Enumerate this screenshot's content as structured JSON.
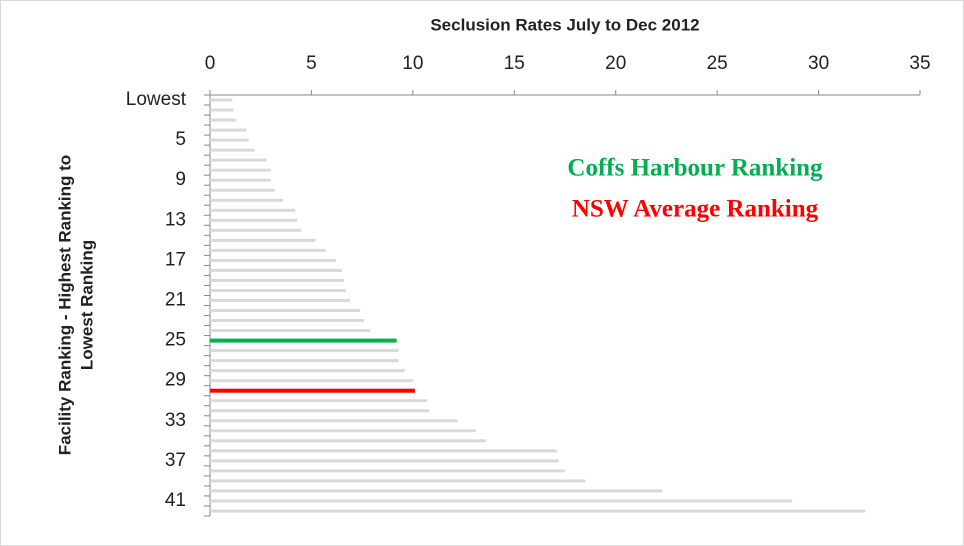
{
  "chart_data": {
    "type": "bar",
    "orientation": "horizontal",
    "title": "Seclusion Rates July to Dec 2012",
    "ylabel": [
      "Facility Ranking - Highest Ranking to",
      "Lowest Ranking"
    ],
    "categories": [
      "Lowest",
      null,
      null,
      null,
      "5",
      null,
      null,
      null,
      "9",
      null,
      null,
      null,
      "13",
      null,
      null,
      null,
      "17",
      null,
      null,
      null,
      "21",
      null,
      null,
      null,
      "25",
      null,
      null,
      null,
      "29",
      null,
      null,
      null,
      "33",
      null,
      null,
      null,
      "37",
      null,
      null,
      null,
      "41",
      null
    ],
    "values": [
      1.1,
      1.15,
      1.3,
      1.8,
      1.9,
      2.2,
      2.8,
      3.0,
      3.0,
      3.2,
      3.6,
      4.2,
      4.3,
      4.5,
      5.2,
      5.7,
      6.2,
      6.5,
      6.6,
      6.7,
      6.9,
      7.4,
      7.6,
      7.9,
      9.2,
      9.3,
      9.3,
      9.6,
      10.0,
      10.1,
      10.7,
      10.8,
      12.2,
      13.1,
      13.6,
      17.1,
      17.2,
      17.5,
      18.5,
      22.3,
      28.7,
      32.3
    ],
    "colors": [
      "#d9d9d9",
      "#d9d9d9",
      "#d9d9d9",
      "#d9d9d9",
      "#d9d9d9",
      "#d9d9d9",
      "#d9d9d9",
      "#d9d9d9",
      "#d9d9d9",
      "#d9d9d9",
      "#d9d9d9",
      "#d9d9d9",
      "#d9d9d9",
      "#d9d9d9",
      "#d9d9d9",
      "#d9d9d9",
      "#d9d9d9",
      "#d9d9d9",
      "#d9d9d9",
      "#d9d9d9",
      "#d9d9d9",
      "#d9d9d9",
      "#d9d9d9",
      "#d9d9d9",
      "#00b050",
      "#d9d9d9",
      "#d9d9d9",
      "#d9d9d9",
      "#d9d9d9",
      "#ff0000",
      "#d9d9d9",
      "#d9d9d9",
      "#d9d9d9",
      "#d9d9d9",
      "#d9d9d9",
      "#d9d9d9",
      "#d9d9d9",
      "#d9d9d9",
      "#d9d9d9",
      "#d9d9d9",
      "#d9d9d9",
      "#d9d9d9"
    ],
    "xlim": [
      0,
      35
    ],
    "xticks": [
      0,
      5,
      10,
      15,
      20,
      25,
      30,
      35
    ],
    "annotations": [
      {
        "text": "Coffs Harbour Ranking",
        "color": "#00b050"
      },
      {
        "text": "NSW Average Ranking",
        "color": "#ff0000"
      }
    ]
  }
}
